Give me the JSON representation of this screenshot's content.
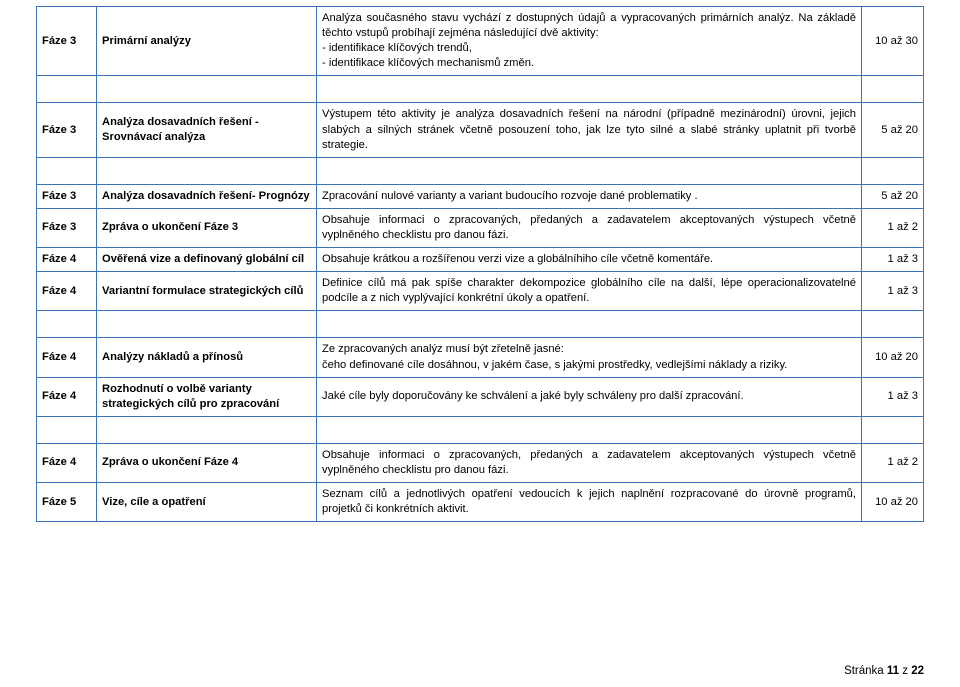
{
  "rows": [
    {
      "phase": "Fáze 3",
      "title": "Primární analýzy",
      "desc": "Analýza současného stavu vychází z dostupných údajů a vypracovaných primárních analýz. Na základě těchto vstupů probíhají zejména následující dvě aktivity:\n-            identifikace                      klíčových                      trendů,\n- identifikace klíčových mechanismů změn.",
      "range": "10 až 30"
    },
    {
      "phase": "Fáze 3",
      "title": "Analýza dosavadních řešení - Srovnávací analýza",
      "desc": "Výstupem této aktivity je analýza dosavadních řešení na národní (případně mezinárodní) úrovni, jejich slabých a silných stránek včetně posouzení toho, jak lze tyto silné a slabé stránky uplatnit při tvorbě strategie.",
      "range": "5 až 20"
    },
    {
      "phase": "Fáze 3",
      "title": "Analýza dosavadních řešení- Prognózy",
      "desc": "Zpracování nulové varianty a variant budoucího rozvoje dané problematiky .",
      "range": "5 až 20"
    },
    {
      "phase": "Fáze 3",
      "title": "Zpráva o ukončení Fáze 3",
      "desc": "Obsahuje informaci o zpracovaných, předaných a zadavatelem akceptovaných výstupech včetně vyplněného checklistu pro danou fázi.",
      "range": "1 až 2"
    },
    {
      "phase": "Fáze 4",
      "title": "Ověřená vize a definovaný globální cíl",
      "desc": "Obsahuje krátkou a rozšířenou verzi vize a globálníhiho cíle včetně komentáře.",
      "range": "1 až 3"
    },
    {
      "phase": "Fáze 4",
      "title": "Variantní formulace strategických cílů",
      "desc": "Definice cílů má pak spíše charakter dekompozice globálního cíle na další, lépe operacionalizovatelné podcíle a z nich vyplývající konkrétní úkoly a opatření.",
      "range": "1 až 3"
    },
    {
      "phase": "Fáze 4",
      "title": "Analýzy nákladů a přínosů",
      "desc": "Ze        zpracovaných        analýz        musí        být        zřetelně        jasné:\nčeho definované cíle dosáhnou, v jakém čase, s jakými prostředky, vedlejšími náklady a riziky.",
      "range": "10 až 20"
    },
    {
      "phase": "Fáze 4",
      "title": "Rozhodnutí o volbě varianty strategických cílů pro zpracování",
      "desc": "Jaké cíle byly doporučovány ke schválení a jaké byly schváleny pro další zpracování.",
      "range": "1 až 3"
    },
    {
      "phase": "Fáze 4",
      "title": "Zpráva o ukončení Fáze 4",
      "desc": "Obsahuje informaci o zpracovaných, předaných a zadavatelem akceptovaných výstupech včetně vyplněného checklistu pro danou fázi.",
      "range": "1 až 2"
    },
    {
      "phase": "Fáze 5",
      "title": "Vize, cíle a opatření",
      "desc": "Seznam cílů a jednotlivých opatření vedoucích k jejich naplnění rozpracované do úrovně programů, projetků či konkrétních aktivit.",
      "range": "10 až 20"
    }
  ],
  "spacerAfter": [
    0,
    1,
    5,
    7
  ],
  "justifyTitle": [
    1,
    2,
    4,
    5,
    7
  ],
  "footer": {
    "prefix": "Stránka ",
    "page": "11",
    "mid": " z ",
    "total": "22"
  },
  "style": {
    "borderColor": "#3b73b9",
    "fontSize": 11.2,
    "pageWidth": 960,
    "pageHeight": 687,
    "col0Width": 60,
    "col1Width": 220,
    "col3Width": 62
  }
}
